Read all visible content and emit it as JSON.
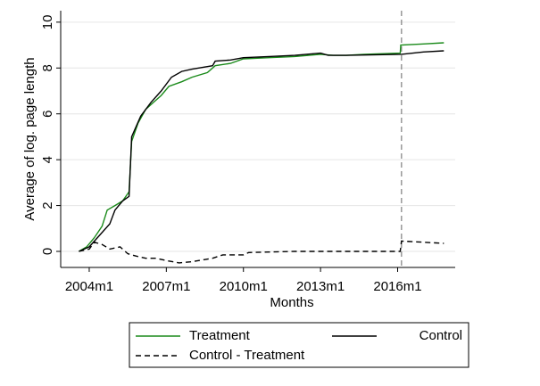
{
  "chart_data": {
    "type": "line",
    "x_label": "Months",
    "y_label": "Average of log. page length",
    "xlim": [
      2002.89,
      2018.24
    ],
    "ylim": [
      -0.7,
      10.5
    ],
    "xticks": [
      {
        "value": 2004,
        "label": "2004m1"
      },
      {
        "value": 2007,
        "label": "2007m1"
      },
      {
        "value": 2010,
        "label": "2010m1"
      },
      {
        "value": 2013,
        "label": "2013m1"
      },
      {
        "value": 2016,
        "label": "2016m1"
      }
    ],
    "yticks": [
      0,
      2,
      4,
      6,
      8,
      10
    ],
    "grid": true,
    "vline": 2016.15,
    "legend": "bottom",
    "series": [
      {
        "name": "Treatment",
        "color": "#1a8a1a",
        "dash": false,
        "x": [
          2003.6,
          2003.9,
          2004.2,
          2004.5,
          2004.7,
          2005.0,
          2005.3,
          2005.55,
          2005.65,
          2005.9,
          2006.2,
          2006.5,
          2006.8,
          2007.1,
          2007.6,
          2008.0,
          2008.6,
          2008.9,
          2009.5,
          2010.0,
          2011.0,
          2012.0,
          2013.0,
          2013.5,
          2014.0,
          2014.7,
          2016.1,
          2016.12,
          2017.0,
          2017.8
        ],
        "values": [
          0,
          0.2,
          0.6,
          1.1,
          1.8,
          2.0,
          2.2,
          2.6,
          4.8,
          5.6,
          6.2,
          6.5,
          6.8,
          7.2,
          7.4,
          7.6,
          7.8,
          8.1,
          8.2,
          8.4,
          8.45,
          8.5,
          8.6,
          8.55,
          8.55,
          8.6,
          8.65,
          9.0,
          9.05,
          9.1
        ]
      },
      {
        "name": "Control",
        "color": "#000000",
        "dash": false,
        "x": [
          2003.6,
          2004.0,
          2004.4,
          2004.8,
          2005.0,
          2005.3,
          2005.55,
          2005.65,
          2006.0,
          2006.4,
          2006.8,
          2007.2,
          2007.6,
          2008.0,
          2008.8,
          2008.9,
          2009.5,
          2010.0,
          2011.0,
          2012.0,
          2013.0,
          2013.3,
          2014.0,
          2016.15,
          2017.0,
          2017.8
        ],
        "values": [
          0,
          0.2,
          0.7,
          1.2,
          1.8,
          2.2,
          2.4,
          5.0,
          5.9,
          6.5,
          7.0,
          7.6,
          7.85,
          7.95,
          8.1,
          8.3,
          8.35,
          8.45,
          8.5,
          8.55,
          8.65,
          8.55,
          8.55,
          8.6,
          8.7,
          8.75
        ]
      },
      {
        "name": "Control - Treatment",
        "color": "#000000",
        "dash": true,
        "x": [
          2003.6,
          2004.0,
          2004.2,
          2004.5,
          2004.8,
          2005.2,
          2005.5,
          2005.8,
          2006.2,
          2006.6,
          2007.0,
          2007.5,
          2008.0,
          2008.8,
          2009.2,
          2010.0,
          2010.2,
          2012.0,
          2014.0,
          2016.1,
          2016.15,
          2017.0,
          2017.8
        ],
        "values": [
          0,
          0.1,
          0.4,
          0.3,
          0.1,
          0.2,
          -0.1,
          -0.2,
          -0.3,
          -0.3,
          -0.4,
          -0.5,
          -0.45,
          -0.3,
          -0.15,
          -0.15,
          -0.05,
          0,
          0,
          0,
          0.45,
          0.4,
          0.35
        ]
      }
    ]
  }
}
